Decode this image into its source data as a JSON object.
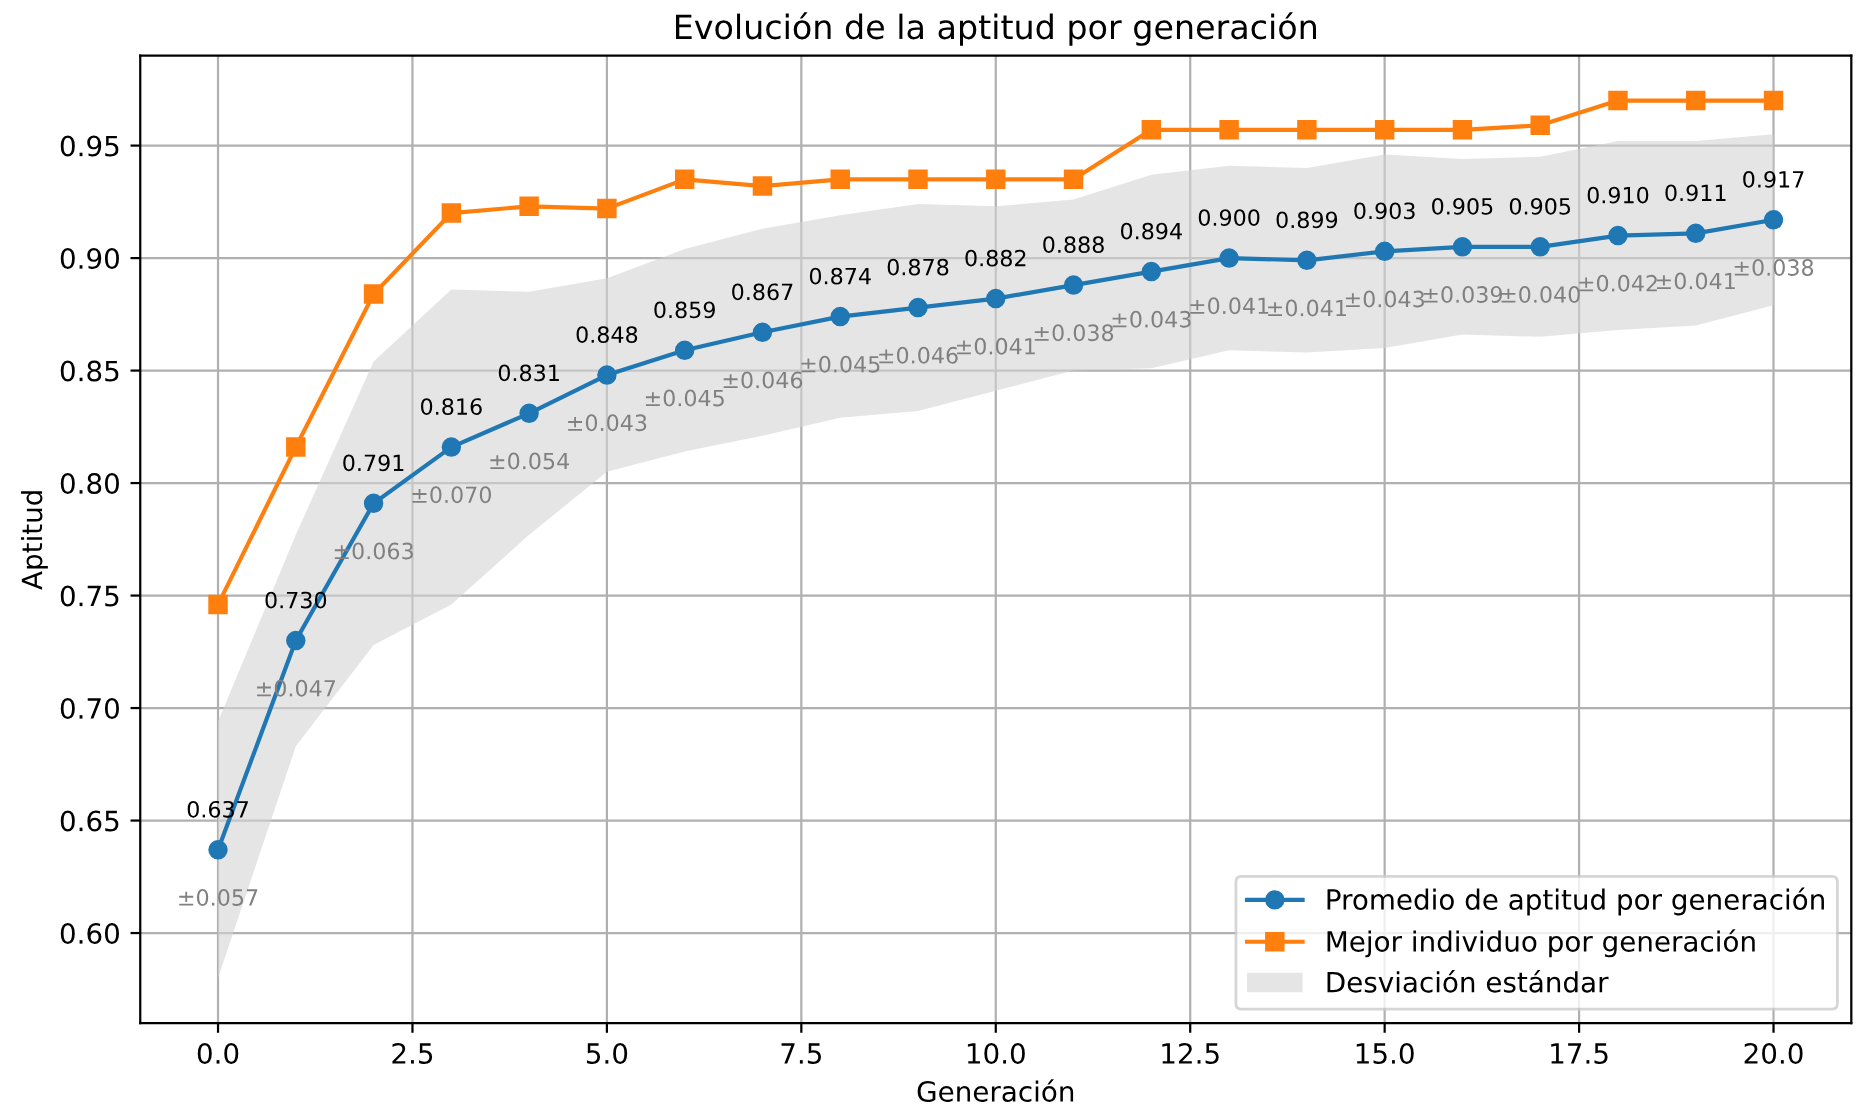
{
  "chart_data": {
    "type": "line",
    "title": "Evolución de la aptitud por generación",
    "xlabel": "Generación",
    "ylabel": "Aptitud",
    "x": [
      0,
      1,
      2,
      3,
      4,
      5,
      6,
      7,
      8,
      9,
      10,
      11,
      12,
      13,
      14,
      15,
      16,
      17,
      18,
      19,
      20
    ],
    "series": [
      {
        "name": "Promedio de aptitud por generación",
        "color": "#1f77b4",
        "marker": "circle",
        "values": [
          0.637,
          0.73,
          0.791,
          0.816,
          0.831,
          0.848,
          0.859,
          0.867,
          0.874,
          0.878,
          0.882,
          0.888,
          0.894,
          0.9,
          0.899,
          0.903,
          0.905,
          0.905,
          0.91,
          0.911,
          0.917
        ],
        "value_labels": [
          "0.637",
          "0.730",
          "0.791",
          "0.816",
          "0.831",
          "0.848",
          "0.859",
          "0.867",
          "0.874",
          "0.878",
          "0.882",
          "0.888",
          "0.894",
          "0.900",
          "0.899",
          "0.903",
          "0.905",
          "0.905",
          "0.910",
          "0.911",
          "0.917"
        ]
      },
      {
        "name": "Mejor individuo por generación",
        "color": "#ff7f0e",
        "marker": "square",
        "values": [
          0.746,
          0.816,
          0.884,
          0.92,
          0.923,
          0.922,
          0.935,
          0.932,
          0.935,
          0.935,
          0.935,
          0.935,
          0.957,
          0.957,
          0.957,
          0.957,
          0.957,
          0.959,
          0.97,
          0.97,
          0.97
        ]
      },
      {
        "name": "Desviación estándar",
        "type": "area",
        "color": "#d3d3d3",
        "values": [
          null,
          null,
          null,
          null,
          null,
          null,
          null,
          null,
          null,
          null,
          null,
          null,
          null,
          null,
          null,
          null,
          null,
          null,
          null,
          null,
          null
        ],
        "lower": [
          0.58,
          0.683,
          0.728,
          0.746,
          0.777,
          0.805,
          0.814,
          0.821,
          0.829,
          0.832,
          0.841,
          0.85,
          0.851,
          0.859,
          0.858,
          0.86,
          0.866,
          0.865,
          0.868,
          0.87,
          0.879
        ],
        "upper": [
          0.694,
          0.777,
          0.854,
          0.886,
          0.885,
          0.891,
          0.904,
          0.913,
          0.919,
          0.924,
          0.923,
          0.926,
          0.937,
          0.941,
          0.94,
          0.946,
          0.944,
          0.945,
          0.952,
          0.952,
          0.955
        ]
      }
    ],
    "annotations": [
      {
        "text": "±0.057",
        "x": 0,
        "y": 0.637
      },
      {
        "text": "±0.047",
        "x": 1,
        "y": 0.73
      },
      {
        "text": "±0.063",
        "x": 2,
        "y": 0.791
      },
      {
        "text": "±0.070",
        "x": 3,
        "y": 0.816
      },
      {
        "text": "±0.054",
        "x": 4,
        "y": 0.831
      },
      {
        "text": "±0.043",
        "x": 5,
        "y": 0.848
      },
      {
        "text": "±0.045",
        "x": 6,
        "y": 0.859
      },
      {
        "text": "±0.046",
        "x": 7,
        "y": 0.867
      },
      {
        "text": "±0.045",
        "x": 8,
        "y": 0.874
      },
      {
        "text": "±0.046",
        "x": 9,
        "y": 0.878
      },
      {
        "text": "±0.041",
        "x": 10,
        "y": 0.882
      },
      {
        "text": "±0.038",
        "x": 11,
        "y": 0.888
      },
      {
        "text": "±0.043",
        "x": 12,
        "y": 0.894
      },
      {
        "text": "±0.041",
        "x": 13,
        "y": 0.9
      },
      {
        "text": "±0.041",
        "x": 14,
        "y": 0.899
      },
      {
        "text": "±0.043",
        "x": 15,
        "y": 0.903
      },
      {
        "text": "±0.039",
        "x": 16,
        "y": 0.905
      },
      {
        "text": "±0.040",
        "x": 17,
        "y": 0.905
      },
      {
        "text": "±0.042",
        "x": 18,
        "y": 0.91
      },
      {
        "text": "±0.041",
        "x": 19,
        "y": 0.911
      },
      {
        "text": "±0.038",
        "x": 20,
        "y": 0.917
      }
    ],
    "xlim": [
      -1,
      21
    ],
    "ylim": [
      0.56,
      0.99
    ],
    "xticks": [
      {
        "value": 0,
        "label": "0.0"
      },
      2.5,
      {
        "value": 5,
        "label": "5.0"
      },
      7.5,
      {
        "value": 10,
        "label": "10.0"
      },
      12.5,
      {
        "value": 15,
        "label": "15.0"
      },
      17.5,
      {
        "value": 20,
        "label": "20.0"
      }
    ],
    "yticks": [
      {
        "value": 0.6,
        "label": "0.60"
      },
      0.65,
      {
        "value": 0.7,
        "label": "0.70"
      },
      0.75,
      {
        "value": 0.8,
        "label": "0.80"
      },
      0.85,
      {
        "value": 0.9,
        "label": "0.90"
      },
      0.95
    ],
    "grid": true,
    "legend": "bottom right"
  }
}
